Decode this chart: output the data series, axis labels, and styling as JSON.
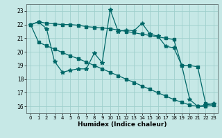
{
  "xlabel": "Humidex (Indice chaleur)",
  "bg_color": "#c6e8e6",
  "grid_color": "#9fcfcc",
  "line_color": "#006868",
  "xlim": [
    -0.5,
    23.5
  ],
  "ylim": [
    15.5,
    23.5
  ],
  "yticks": [
    16,
    17,
    18,
    19,
    20,
    21,
    22,
    23
  ],
  "xticks": [
    0,
    1,
    2,
    3,
    4,
    5,
    6,
    7,
    8,
    9,
    10,
    11,
    12,
    13,
    14,
    15,
    16,
    17,
    18,
    19,
    20,
    21,
    22,
    23
  ],
  "line1_x": [
    0,
    1,
    2,
    3,
    4,
    5,
    6,
    7,
    8,
    9,
    10,
    11,
    12,
    13,
    14,
    15,
    16,
    17,
    18,
    19,
    20,
    21,
    22,
    23
  ],
  "line1_y": [
    22.0,
    22.2,
    22.1,
    22.05,
    22.0,
    22.0,
    21.95,
    21.85,
    21.8,
    21.75,
    21.7,
    21.6,
    21.5,
    21.4,
    21.3,
    21.2,
    21.1,
    21.0,
    20.9,
    19.0,
    19.0,
    18.9,
    16.2,
    16.15
  ],
  "line2_x": [
    0,
    1,
    2,
    3,
    4,
    5,
    6,
    7,
    8,
    9,
    10,
    11,
    12,
    13,
    14,
    15,
    16,
    17,
    18,
    19,
    20,
    21,
    22,
    23
  ],
  "line2_y": [
    22.0,
    22.2,
    21.7,
    19.3,
    18.5,
    18.65,
    18.75,
    18.75,
    19.9,
    19.2,
    23.1,
    21.5,
    21.6,
    21.55,
    22.1,
    21.3,
    21.15,
    20.4,
    20.3,
    19.0,
    16.5,
    16.0,
    16.1,
    16.2
  ],
  "line3_x": [
    0,
    1,
    2,
    3,
    4,
    5,
    6,
    7,
    8,
    9,
    10,
    11,
    12,
    13,
    14,
    15,
    16,
    17,
    18,
    19,
    20,
    21,
    22,
    23
  ],
  "line3_y": [
    22.0,
    20.7,
    20.45,
    20.2,
    19.95,
    19.7,
    19.5,
    19.25,
    19.0,
    18.75,
    18.5,
    18.25,
    18.0,
    17.75,
    17.5,
    17.25,
    17.0,
    16.75,
    16.5,
    16.3,
    16.1,
    16.0,
    16.0,
    16.1
  ]
}
